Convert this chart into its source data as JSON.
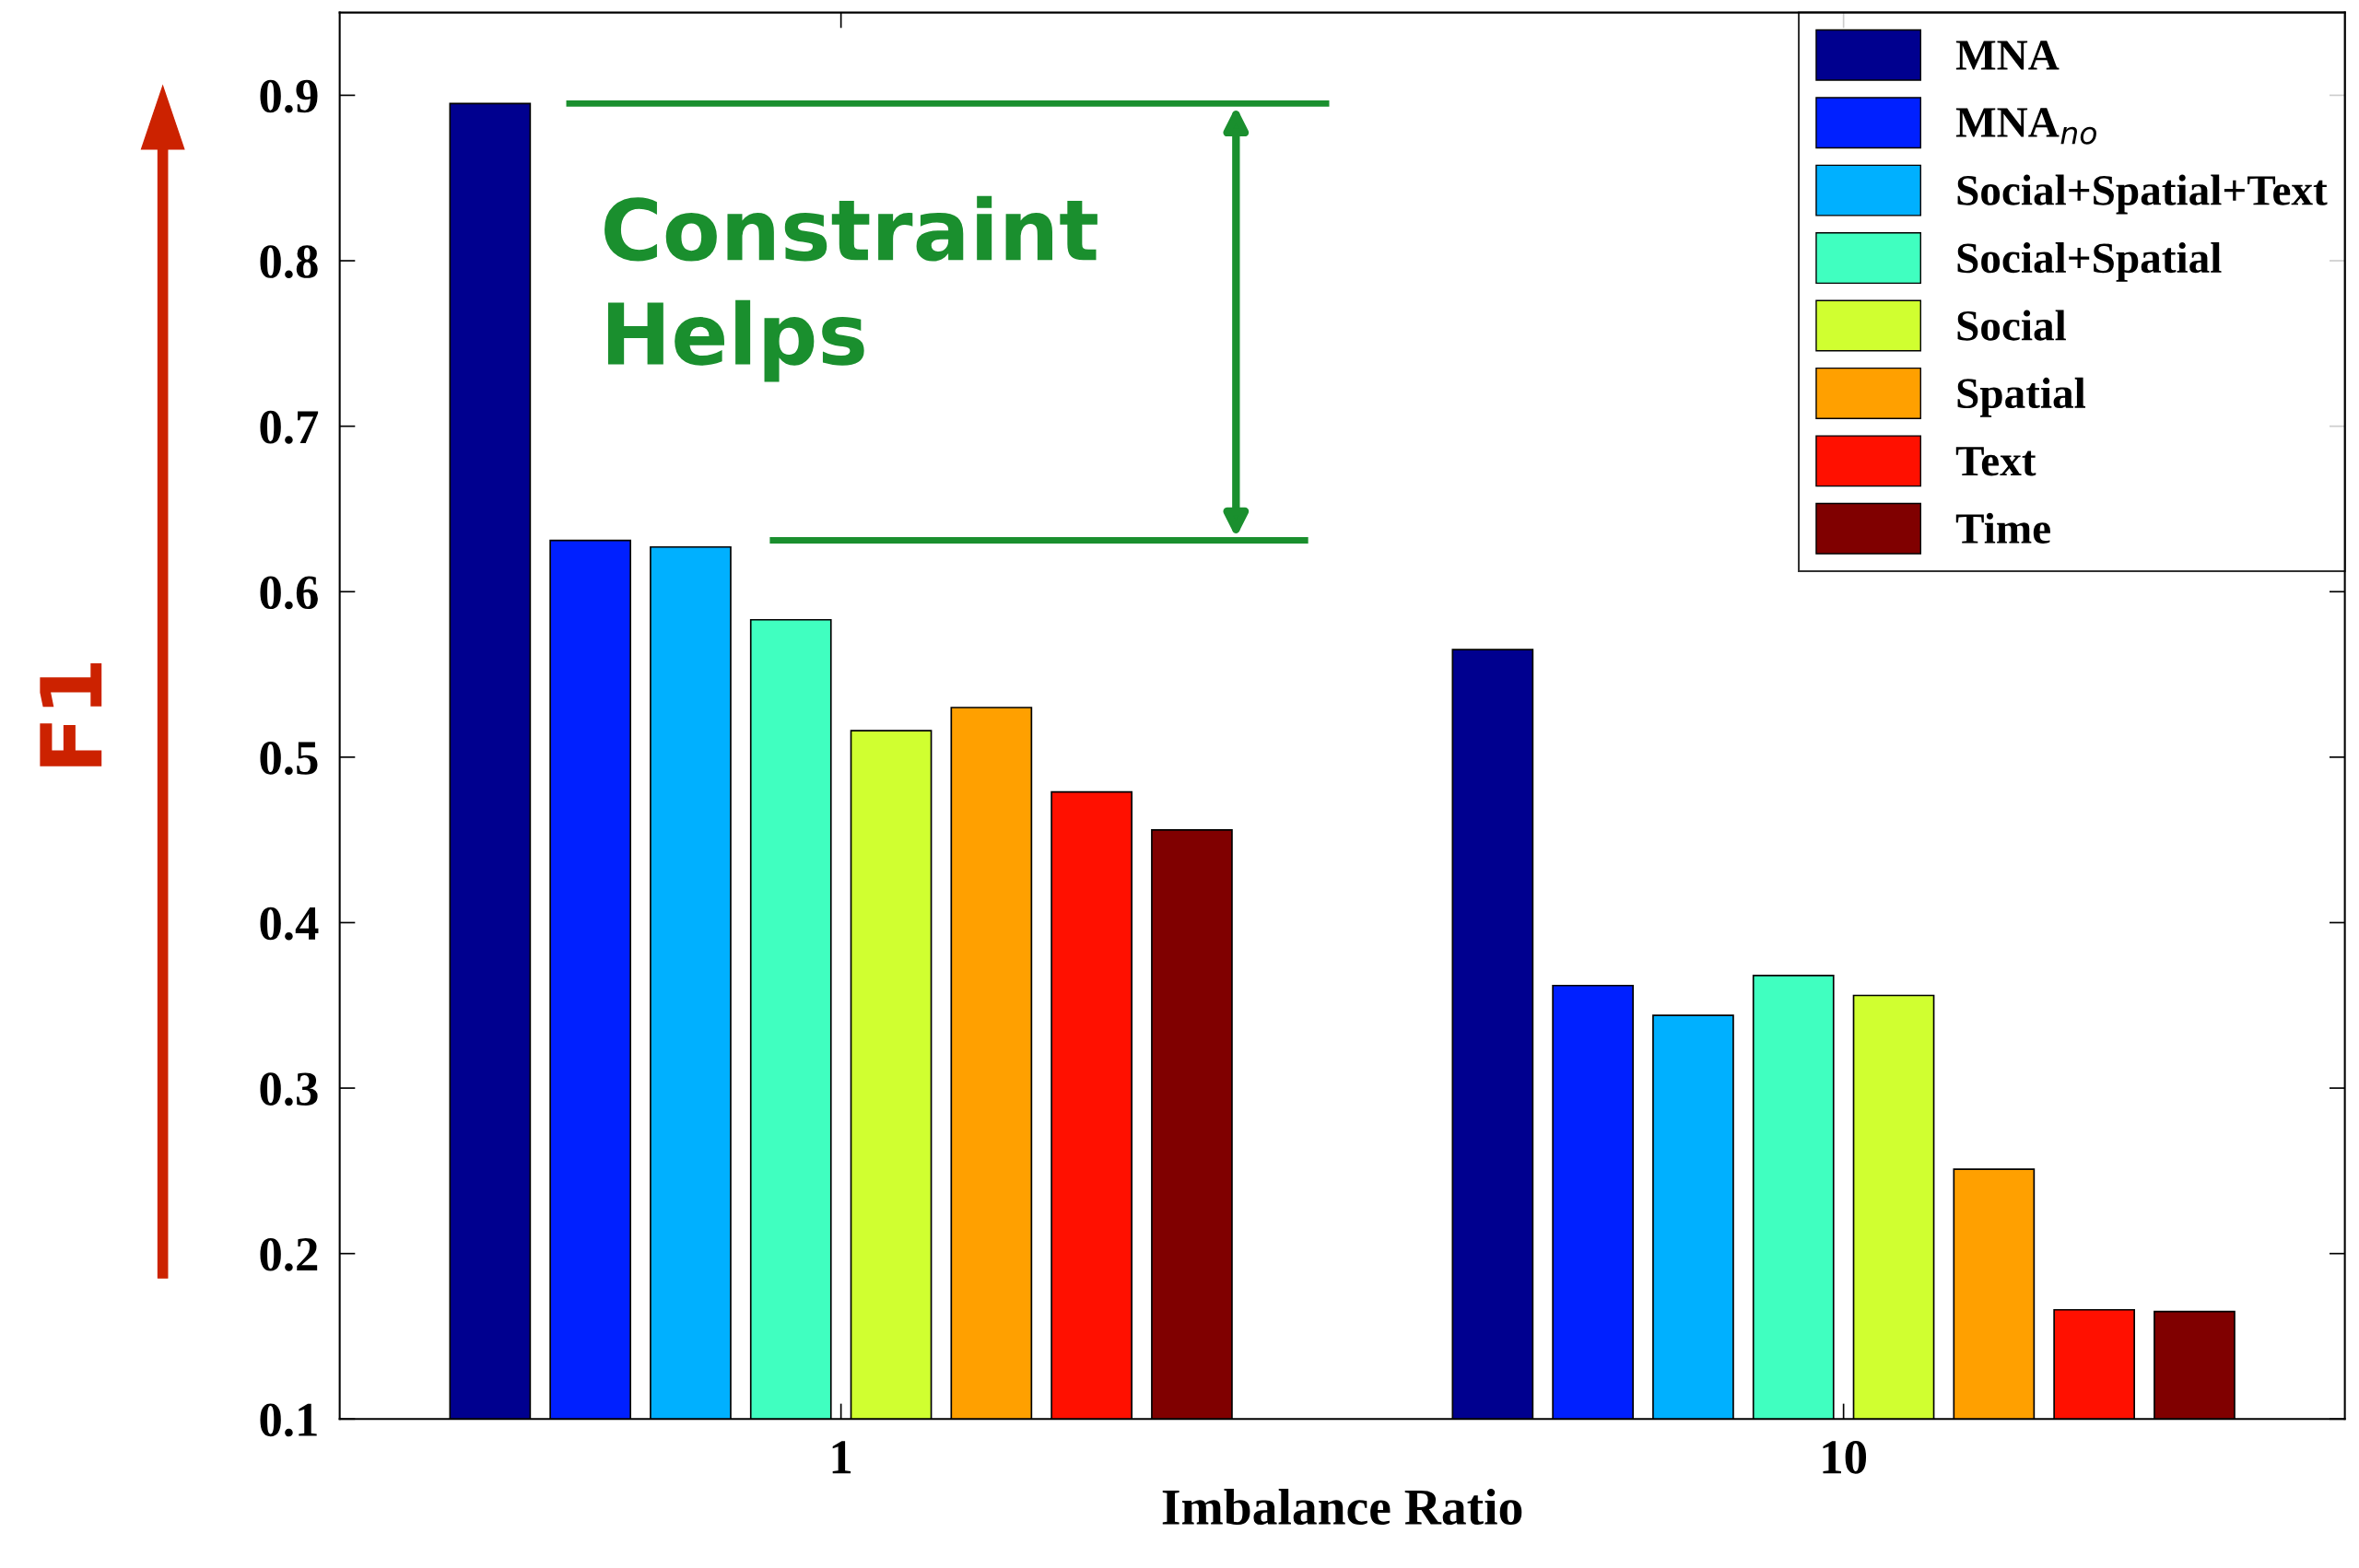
{
  "chart_data": {
    "type": "bar",
    "categories": [
      "1",
      "10"
    ],
    "xlabel": "Imbalance Ratio",
    "ylabel": "F1",
    "ylim": [
      0.1,
      0.95
    ],
    "yticks": [
      0.1,
      0.2,
      0.3,
      0.4,
      0.5,
      0.6,
      0.7,
      0.8,
      0.9
    ],
    "series": [
      {
        "name": "MNA",
        "color": "#00008f",
        "values": [
          0.895,
          0.565
        ]
      },
      {
        "name": "MNA$_{no}$",
        "color": "#0020ff",
        "values": [
          0.631,
          0.362
        ]
      },
      {
        "name": "Social+Spatial+Text",
        "color": "#00b0ff",
        "values": [
          0.627,
          0.344
        ]
      },
      {
        "name": "Social+Spatial",
        "color": "#40ffc0",
        "values": [
          0.583,
          0.368
        ]
      },
      {
        "name": "Social",
        "color": "#d0ff30",
        "values": [
          0.516,
          0.356
        ]
      },
      {
        "name": "Spatial",
        "color": "#ffa000",
        "values": [
          0.53,
          0.251
        ]
      },
      {
        "name": "Text",
        "color": "#ff1000",
        "values": [
          0.479,
          0.166
        ]
      },
      {
        "name": "Time",
        "color": "#800000",
        "values": [
          0.456,
          0.165
        ]
      }
    ],
    "legend": "top right",
    "grid": false,
    "annotations": [
      "Constraint\nHelps"
    ]
  }
}
